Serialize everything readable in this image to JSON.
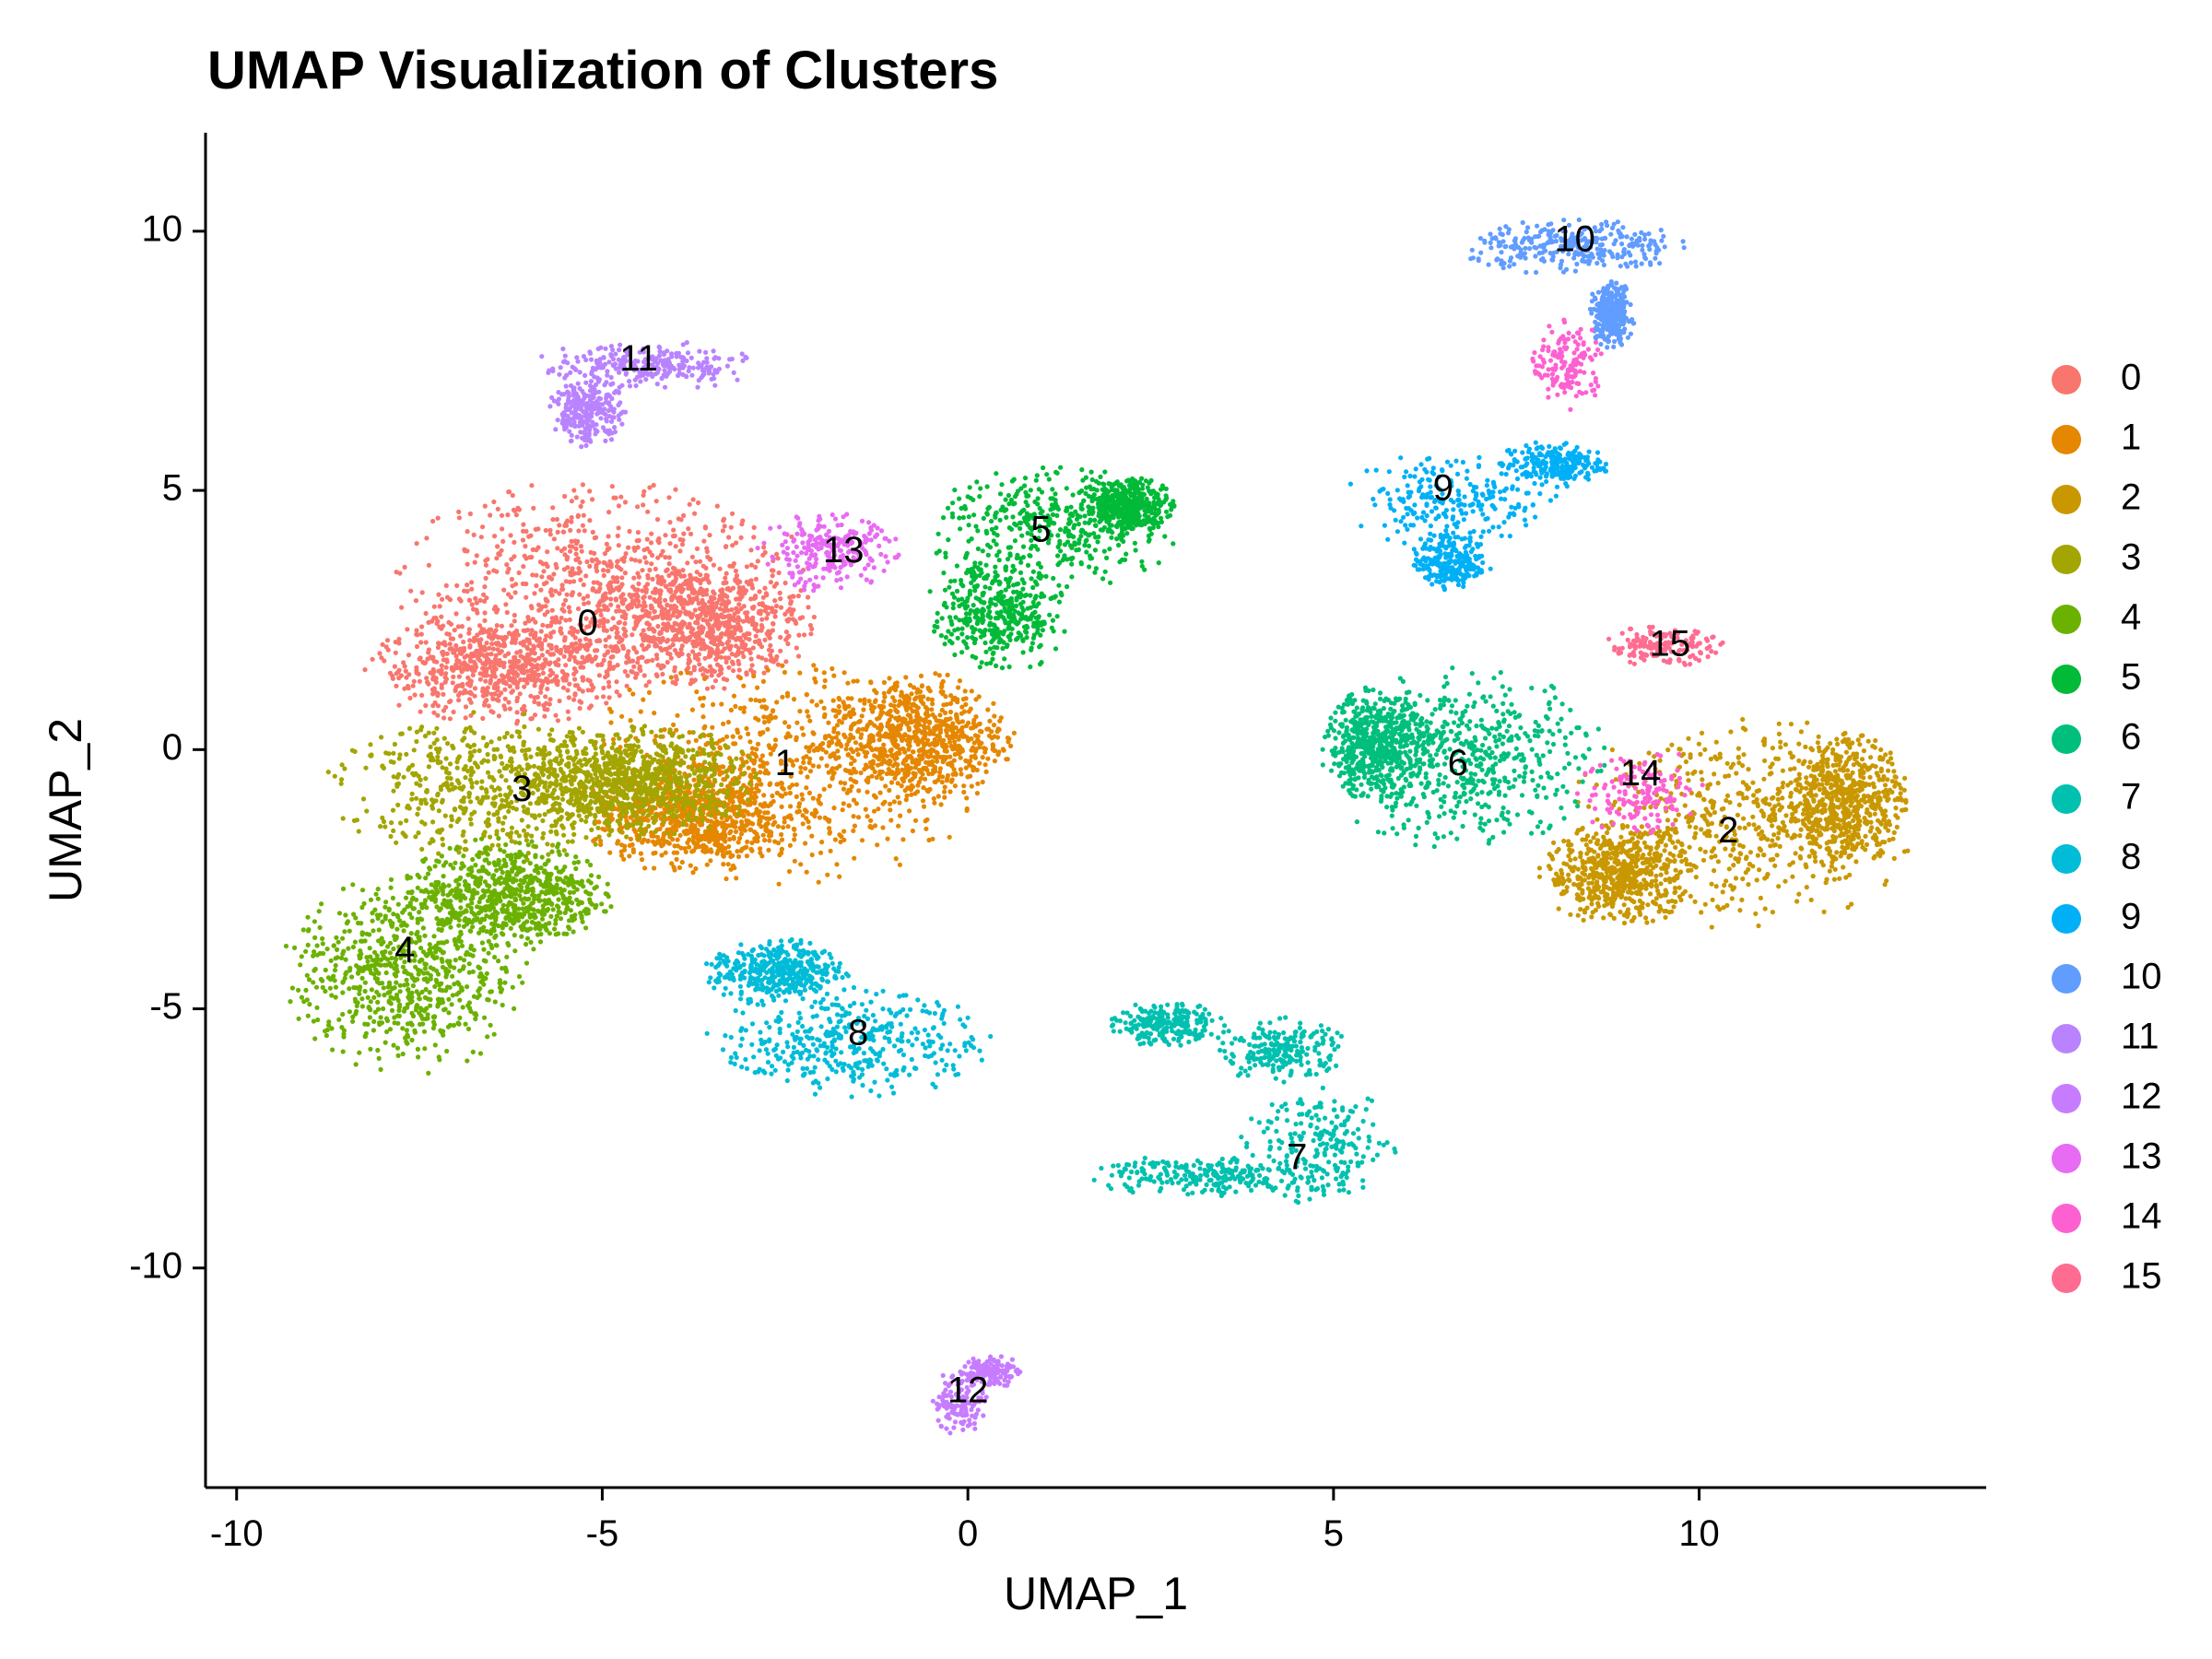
{
  "chart_data": {
    "type": "scatter",
    "title": "UMAP Visualization of Clusters",
    "xlabel": "UMAP_1",
    "ylabel": "UMAP_2",
    "xlim": [
      -10.4,
      13.9
    ],
    "ylim": [
      -14.2,
      11.9
    ],
    "x_ticks": [
      -10,
      -5,
      0,
      5,
      10
    ],
    "y_ticks": [
      -10,
      -5,
      0,
      5,
      10
    ],
    "x_tick_labels": [
      "-10",
      "-5",
      "0",
      "5",
      "10"
    ],
    "y_tick_labels": [
      "-10",
      "-5",
      "0",
      "5",
      "10"
    ],
    "grid": false,
    "legend_position": "right",
    "clusters": [
      {
        "name": "0",
        "color": "#F8766D",
        "label_pos": [
          -5.2,
          2.4
        ],
        "n_points": 2200,
        "blobs": [
          {
            "c": [
              -5.0,
              3.2
            ],
            "r": [
              2.6,
              1.8
            ]
          },
          {
            "c": [
              -6.3,
              1.6
            ],
            "r": [
              1.8,
              1.0
            ]
          },
          {
            "c": [
              -3.6,
              2.4
            ],
            "r": [
              1.4,
              1.2
            ]
          }
        ]
      },
      {
        "name": "1",
        "color": "#E58700",
        "label_pos": [
          -2.5,
          -0.3
        ],
        "n_points": 2100,
        "blobs": [
          {
            "c": [
              -2.6,
              -0.4
            ],
            "r": [
              2.6,
              2.0
            ]
          },
          {
            "c": [
              -0.7,
              0.2
            ],
            "r": [
              1.2,
              1.2
            ]
          },
          {
            "c": [
              -3.8,
              -1.3
            ],
            "r": [
              1.3,
              1.0
            ]
          }
        ]
      },
      {
        "name": "2",
        "color": "#C99800",
        "label_pos": [
          10.4,
          -1.6
        ],
        "n_points": 1700,
        "blobs": [
          {
            "c": [
              10.6,
              -1.4
            ],
            "r": [
              2.2,
              1.9
            ]
          },
          {
            "c": [
              12.0,
              -1.0
            ],
            "r": [
              0.8,
              1.2
            ]
          },
          {
            "c": [
              8.9,
              -2.4
            ],
            "r": [
              1.0,
              0.9
            ]
          }
        ]
      },
      {
        "name": "3",
        "color": "#A3A500",
        "label_pos": [
          -6.1,
          -0.8
        ],
        "n_points": 1400,
        "blobs": [
          {
            "c": [
              -6.2,
              -0.7
            ],
            "r": [
              2.4,
              1.3
            ]
          },
          {
            "c": [
              -4.5,
              -0.6
            ],
            "r": [
              1.5,
              1.0
            ]
          }
        ]
      },
      {
        "name": "4",
        "color": "#6BB100",
        "label_pos": [
          -7.7,
          -3.9
        ],
        "n_points": 1400,
        "blobs": [
          {
            "c": [
              -7.7,
              -4.3
            ],
            "r": [
              1.5,
              1.8
            ]
          },
          {
            "c": [
              -6.3,
              -2.8
            ],
            "r": [
              1.3,
              1.0
            ]
          }
        ]
      },
      {
        "name": "5",
        "color": "#00BA38",
        "label_pos": [
          1.0,
          4.2
        ],
        "n_points": 1200,
        "blobs": [
          {
            "c": [
              1.2,
              4.3
            ],
            "r": [
              1.6,
              1.1
            ]
          },
          {
            "c": [
              0.4,
              2.6
            ],
            "r": [
              0.9,
              1.1
            ]
          },
          {
            "c": [
              2.2,
              4.7
            ],
            "r": [
              0.6,
              0.5
            ]
          }
        ]
      },
      {
        "name": "6",
        "color": "#00BF7D",
        "label_pos": [
          6.7,
          -0.3
        ],
        "n_points": 1100,
        "blobs": [
          {
            "c": [
              6.8,
              -0.2
            ],
            "r": [
              1.8,
              1.6
            ]
          },
          {
            "c": [
              5.6,
              0.1
            ],
            "r": [
              0.7,
              1.0
            ]
          }
        ]
      },
      {
        "name": "7",
        "color": "#00C0AF",
        "label_pos": [
          4.5,
          -7.9
        ],
        "n_points": 900,
        "blobs": [
          {
            "c": [
              4.8,
              -7.7
            ],
            "r": [
              1.0,
              1.1
            ]
          },
          {
            "c": [
              3.2,
              -8.2
            ],
            "r": [
              1.4,
              0.4
            ]
          },
          {
            "c": [
              4.3,
              -5.8
            ],
            "r": [
              0.8,
              0.6
            ]
          },
          {
            "c": [
              2.7,
              -5.3
            ],
            "r": [
              0.8,
              0.4
            ]
          }
        ]
      },
      {
        "name": "8",
        "color": "#00BCD8",
        "label_pos": [
          -1.5,
          -5.5
        ],
        "n_points": 800,
        "blobs": [
          {
            "c": [
              -1.6,
              -5.6
            ],
            "r": [
              1.8,
              1.0
            ]
          },
          {
            "c": [
              -2.6,
              -4.3
            ],
            "r": [
              0.9,
              0.6
            ]
          }
        ]
      },
      {
        "name": "9",
        "color": "#00B0F6",
        "label_pos": [
          6.5,
          5.0
        ],
        "n_points": 700,
        "blobs": [
          {
            "c": [
              6.6,
              4.8
            ],
            "r": [
              1.3,
              0.9
            ]
          },
          {
            "c": [
              8.0,
              5.5
            ],
            "r": [
              0.7,
              0.4
            ]
          },
          {
            "c": [
              6.6,
              3.6
            ],
            "r": [
              0.5,
              0.5
            ]
          }
        ]
      },
      {
        "name": "10",
        "color": "#619CFF",
        "label_pos": [
          8.3,
          9.8
        ],
        "n_points": 600,
        "blobs": [
          {
            "c": [
              8.3,
              9.7
            ],
            "r": [
              1.4,
              0.5
            ]
          },
          {
            "c": [
              8.8,
              8.4
            ],
            "r": [
              0.3,
              0.6
            ]
          }
        ]
      },
      {
        "name": "11",
        "color": "#B983FF",
        "label_pos": [
          -4.5,
          7.5
        ],
        "n_points": 500,
        "blobs": [
          {
            "c": [
              -4.4,
              7.4
            ],
            "r": [
              1.4,
              0.45
            ]
          },
          {
            "c": [
              -5.2,
              6.5
            ],
            "r": [
              0.5,
              0.6
            ]
          }
        ]
      },
      {
        "name": "12",
        "color": "#C77CFF",
        "label_pos": [
          0.0,
          -12.4
        ],
        "n_points": 250,
        "blobs": [
          {
            "c": [
              -0.1,
              -12.6
            ],
            "r": [
              0.35,
              0.6
            ]
          },
          {
            "c": [
              0.3,
              -12.0
            ],
            "r": [
              0.4,
              0.3
            ]
          }
        ]
      },
      {
        "name": "13",
        "color": "#E76BF3",
        "label_pos": [
          -1.7,
          3.8
        ],
        "n_points": 250,
        "blobs": [
          {
            "c": [
              -1.9,
              3.8
            ],
            "r": [
              0.9,
              0.7
            ]
          }
        ]
      },
      {
        "name": "14",
        "color": "#FD61D1",
        "label_pos": [
          9.2,
          -0.5
        ],
        "n_points": 300,
        "blobs": [
          {
            "c": [
              9.2,
              -0.8
            ],
            "r": [
              0.8,
              0.8
            ]
          },
          {
            "c": [
              8.2,
              7.4
            ],
            "r": [
              0.5,
              0.8
            ]
          }
        ]
      },
      {
        "name": "15",
        "color": "#FF6C91",
        "label_pos": [
          9.6,
          2.0
        ],
        "n_points": 150,
        "blobs": [
          {
            "c": [
              9.5,
              2.0
            ],
            "r": [
              0.8,
              0.35
            ]
          }
        ]
      }
    ]
  }
}
